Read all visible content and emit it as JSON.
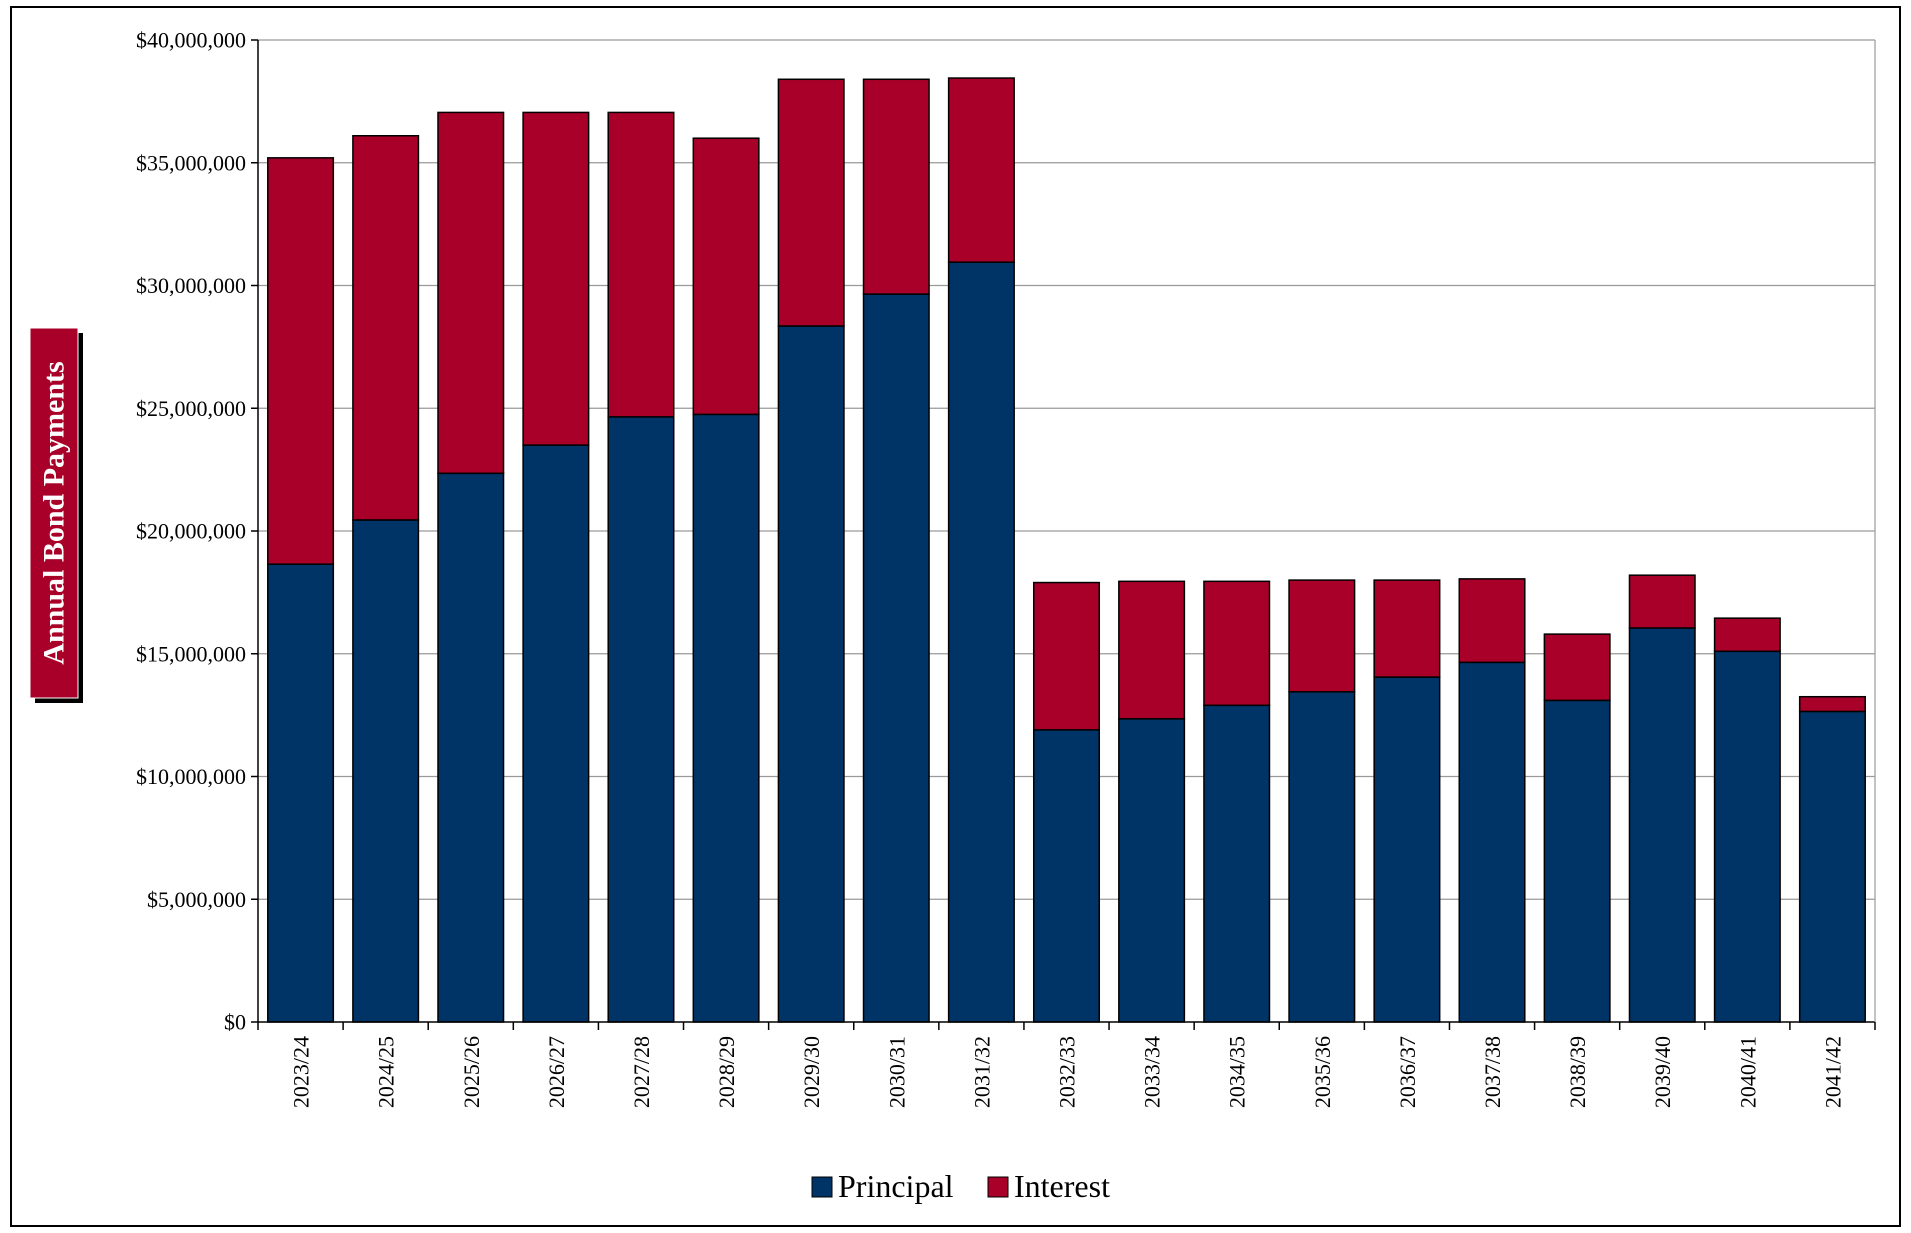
{
  "chart_data": {
    "type": "bar",
    "stacked": true,
    "title": "",
    "xlabel": "",
    "ylabel": "Annual Bond Payments",
    "ylim": [
      0,
      40000000
    ],
    "yticks": [
      0,
      5000000,
      10000000,
      15000000,
      20000000,
      25000000,
      30000000,
      35000000,
      40000000
    ],
    "ytick_labels": [
      "$0",
      "$5,000,000",
      "$10,000,000",
      "$15,000,000",
      "$20,000,000",
      "$25,000,000",
      "$30,000,000",
      "$35,000,000",
      "$40,000,000"
    ],
    "categories": [
      "2023/24",
      "2024/25",
      "2025/26",
      "2026/27",
      "2027/28",
      "2028/29",
      "2029/30",
      "2030/31",
      "2031/32",
      "2032/33",
      "2033/34",
      "2034/35",
      "2035/36",
      "2036/37",
      "2037/38",
      "2038/39",
      "2039/40",
      "2040/41",
      "2041/42"
    ],
    "series": [
      {
        "name": "Principal",
        "color": "#003366",
        "values": [
          18650000,
          20450000,
          22350000,
          23500000,
          24650000,
          24750000,
          28350000,
          29650000,
          30950000,
          11900000,
          12350000,
          12900000,
          13450000,
          14050000,
          14650000,
          13100000,
          16050000,
          15100000,
          12650000
        ]
      },
      {
        "name": "Interest",
        "color": "#A80028",
        "values": [
          16550000,
          15650000,
          14700000,
          13550000,
          12400000,
          11250000,
          10050000,
          8750000,
          7500000,
          6000000,
          5600000,
          5050000,
          4550000,
          3950000,
          3400000,
          2700000,
          2150000,
          1350000,
          600000
        ]
      }
    ],
    "grid": "horizontal",
    "legend_position": "bottom"
  }
}
